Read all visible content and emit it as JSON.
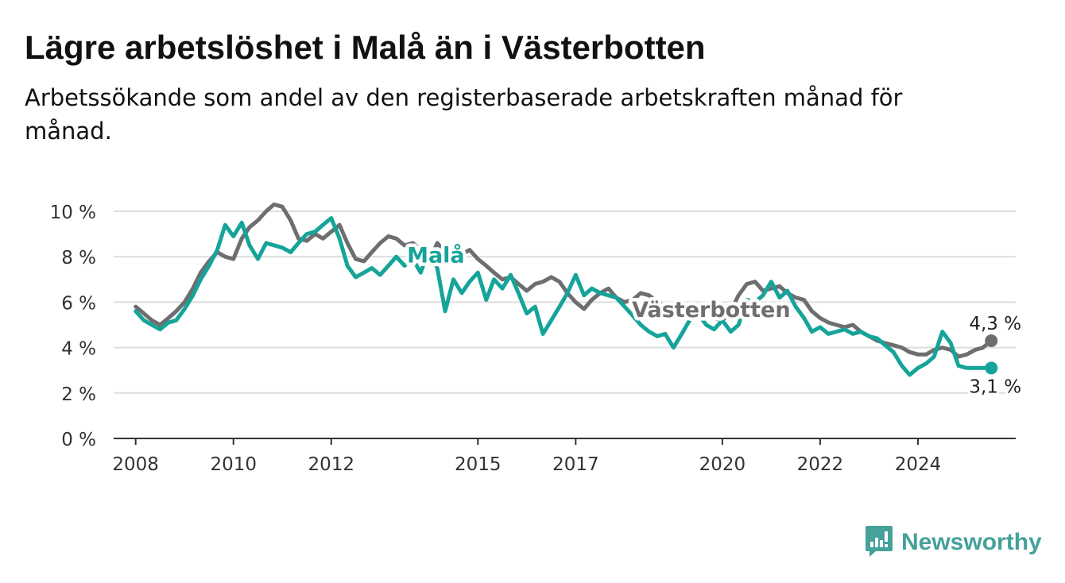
{
  "chart_data": {
    "type": "line",
    "title": "Lägre arbetslöshet i Malå än i Västerbotten",
    "subtitle": "Arbetssökande som andel av den registerbaserade arbetskraften månad för månad.",
    "ylim": [
      0,
      10
    ],
    "y_ticks": [
      0,
      2,
      4,
      6,
      8,
      10
    ],
    "y_tick_labels": [
      "0 %",
      "2 %",
      "4 %",
      "6 %",
      "8 %",
      "10 %"
    ],
    "x_ticks": [
      2008,
      2010,
      2012,
      2015,
      2017,
      2020,
      2022,
      2024
    ],
    "x_tick_labels": [
      "2008",
      "2010",
      "2012",
      "2015",
      "2017",
      "2020",
      "2022",
      "2024"
    ],
    "grid": true,
    "series": [
      {
        "name": "Västerbotten",
        "color": "#6e6d70",
        "end_label": "4,3 %",
        "points": [
          [
            2008.0,
            5.8
          ],
          [
            2008.17,
            5.5
          ],
          [
            2008.33,
            5.2
          ],
          [
            2008.5,
            5.0
          ],
          [
            2008.67,
            5.3
          ],
          [
            2008.83,
            5.6
          ],
          [
            2009.0,
            6.0
          ],
          [
            2009.17,
            6.6
          ],
          [
            2009.33,
            7.3
          ],
          [
            2009.5,
            7.8
          ],
          [
            2009.67,
            8.2
          ],
          [
            2009.83,
            8.0
          ],
          [
            2010.0,
            7.9
          ],
          [
            2010.17,
            8.8
          ],
          [
            2010.33,
            9.3
          ],
          [
            2010.5,
            9.6
          ],
          [
            2010.67,
            10.0
          ],
          [
            2010.83,
            10.3
          ],
          [
            2011.0,
            10.2
          ],
          [
            2011.17,
            9.6
          ],
          [
            2011.33,
            8.8
          ],
          [
            2011.5,
            8.7
          ],
          [
            2011.67,
            9.0
          ],
          [
            2011.83,
            8.8
          ],
          [
            2012.0,
            9.1
          ],
          [
            2012.17,
            9.4
          ],
          [
            2012.33,
            8.6
          ],
          [
            2012.5,
            7.9
          ],
          [
            2012.67,
            7.8
          ],
          [
            2012.83,
            8.2
          ],
          [
            2013.0,
            8.6
          ],
          [
            2013.17,
            8.9
          ],
          [
            2013.33,
            8.8
          ],
          [
            2013.5,
            8.5
          ],
          [
            2013.67,
            8.6
          ],
          [
            2013.83,
            8.3
          ],
          [
            2014.0,
            7.8
          ],
          [
            2014.17,
            8.6
          ],
          [
            2014.33,
            8.2
          ],
          [
            2014.5,
            8.4
          ],
          [
            2014.67,
            8.1
          ],
          [
            2014.83,
            8.3
          ],
          [
            2015.0,
            7.9
          ],
          [
            2015.17,
            7.6
          ],
          [
            2015.33,
            7.3
          ],
          [
            2015.5,
            7.0
          ],
          [
            2015.67,
            7.1
          ],
          [
            2015.83,
            6.8
          ],
          [
            2016.0,
            6.5
          ],
          [
            2016.17,
            6.8
          ],
          [
            2016.33,
            6.9
          ],
          [
            2016.5,
            7.1
          ],
          [
            2016.67,
            6.9
          ],
          [
            2016.83,
            6.4
          ],
          [
            2017.0,
            6.0
          ],
          [
            2017.17,
            5.7
          ],
          [
            2017.33,
            6.1
          ],
          [
            2017.5,
            6.4
          ],
          [
            2017.67,
            6.6
          ],
          [
            2017.83,
            6.2
          ],
          [
            2018.0,
            6.0
          ],
          [
            2018.17,
            6.1
          ],
          [
            2018.33,
            6.4
          ],
          [
            2018.5,
            6.3
          ],
          [
            2018.67,
            6.0
          ],
          [
            2018.83,
            5.8
          ],
          [
            2019.0,
            5.6
          ],
          [
            2019.17,
            5.5
          ],
          [
            2019.33,
            5.6
          ],
          [
            2019.5,
            5.4
          ],
          [
            2019.67,
            5.5
          ],
          [
            2019.83,
            5.3
          ],
          [
            2020.0,
            5.2
          ],
          [
            2020.17,
            5.6
          ],
          [
            2020.33,
            6.3
          ],
          [
            2020.5,
            6.8
          ],
          [
            2020.67,
            6.9
          ],
          [
            2020.83,
            6.5
          ],
          [
            2021.0,
            6.6
          ],
          [
            2021.17,
            6.7
          ],
          [
            2021.33,
            6.4
          ],
          [
            2021.5,
            6.2
          ],
          [
            2021.67,
            6.1
          ],
          [
            2021.83,
            5.6
          ],
          [
            2022.0,
            5.3
          ],
          [
            2022.17,
            5.1
          ],
          [
            2022.33,
            5.0
          ],
          [
            2022.5,
            4.9
          ],
          [
            2022.67,
            5.0
          ],
          [
            2022.83,
            4.7
          ],
          [
            2023.0,
            4.5
          ],
          [
            2023.17,
            4.3
          ],
          [
            2023.33,
            4.2
          ],
          [
            2023.5,
            4.1
          ],
          [
            2023.67,
            4.0
          ],
          [
            2023.83,
            3.8
          ],
          [
            2024.0,
            3.7
          ],
          [
            2024.17,
            3.7
          ],
          [
            2024.33,
            3.9
          ],
          [
            2024.5,
            4.0
          ],
          [
            2024.67,
            3.9
          ],
          [
            2024.83,
            3.6
          ],
          [
            2025.0,
            3.7
          ],
          [
            2025.17,
            3.9
          ],
          [
            2025.33,
            4.0
          ],
          [
            2025.5,
            4.3
          ]
        ]
      },
      {
        "name": "Malå",
        "color": "#15a499",
        "end_label": "3,1 %",
        "points": [
          [
            2008.0,
            5.6
          ],
          [
            2008.17,
            5.2
          ],
          [
            2008.33,
            5.0
          ],
          [
            2008.5,
            4.8
          ],
          [
            2008.67,
            5.1
          ],
          [
            2008.83,
            5.2
          ],
          [
            2009.0,
            5.7
          ],
          [
            2009.17,
            6.3
          ],
          [
            2009.33,
            7.0
          ],
          [
            2009.5,
            7.6
          ],
          [
            2009.67,
            8.3
          ],
          [
            2009.83,
            9.4
          ],
          [
            2010.0,
            8.9
          ],
          [
            2010.17,
            9.5
          ],
          [
            2010.33,
            8.5
          ],
          [
            2010.5,
            7.9
          ],
          [
            2010.67,
            8.6
          ],
          [
            2010.83,
            8.5
          ],
          [
            2011.0,
            8.4
          ],
          [
            2011.17,
            8.2
          ],
          [
            2011.33,
            8.6
          ],
          [
            2011.5,
            9.0
          ],
          [
            2011.67,
            9.1
          ],
          [
            2011.83,
            9.4
          ],
          [
            2012.0,
            9.7
          ],
          [
            2012.17,
            8.8
          ],
          [
            2012.33,
            7.6
          ],
          [
            2012.5,
            7.1
          ],
          [
            2012.67,
            7.3
          ],
          [
            2012.83,
            7.5
          ],
          [
            2013.0,
            7.2
          ],
          [
            2013.17,
            7.6
          ],
          [
            2013.33,
            8.0
          ],
          [
            2013.5,
            7.6
          ],
          [
            2013.67,
            7.9
          ],
          [
            2013.83,
            7.3
          ],
          [
            2014.0,
            8.3
          ],
          [
            2014.17,
            7.5
          ],
          [
            2014.33,
            5.6
          ],
          [
            2014.5,
            7.0
          ],
          [
            2014.67,
            6.4
          ],
          [
            2014.83,
            6.9
          ],
          [
            2015.0,
            7.3
          ],
          [
            2015.17,
            6.1
          ],
          [
            2015.33,
            7.0
          ],
          [
            2015.5,
            6.6
          ],
          [
            2015.67,
            7.2
          ],
          [
            2015.83,
            6.4
          ],
          [
            2016.0,
            5.5
          ],
          [
            2016.17,
            5.8
          ],
          [
            2016.33,
            4.6
          ],
          [
            2016.5,
            5.2
          ],
          [
            2016.67,
            5.8
          ],
          [
            2016.83,
            6.4
          ],
          [
            2017.0,
            7.2
          ],
          [
            2017.17,
            6.3
          ],
          [
            2017.33,
            6.6
          ],
          [
            2017.5,
            6.4
          ],
          [
            2017.67,
            6.3
          ],
          [
            2017.83,
            6.2
          ],
          [
            2018.0,
            5.8
          ],
          [
            2018.17,
            5.4
          ],
          [
            2018.33,
            5.0
          ],
          [
            2018.5,
            4.7
          ],
          [
            2018.67,
            4.5
          ],
          [
            2018.83,
            4.6
          ],
          [
            2019.0,
            4.0
          ],
          [
            2019.17,
            4.6
          ],
          [
            2019.33,
            5.2
          ],
          [
            2019.5,
            5.5
          ],
          [
            2019.67,
            5.0
          ],
          [
            2019.83,
            4.8
          ],
          [
            2020.0,
            5.2
          ],
          [
            2020.17,
            4.7
          ],
          [
            2020.33,
            5.0
          ],
          [
            2020.5,
            6.1
          ],
          [
            2020.67,
            6.0
          ],
          [
            2020.83,
            6.3
          ],
          [
            2021.0,
            6.9
          ],
          [
            2021.17,
            6.2
          ],
          [
            2021.33,
            6.5
          ],
          [
            2021.5,
            5.8
          ],
          [
            2021.67,
            5.3
          ],
          [
            2021.83,
            4.7
          ],
          [
            2022.0,
            4.9
          ],
          [
            2022.17,
            4.6
          ],
          [
            2022.33,
            4.7
          ],
          [
            2022.5,
            4.8
          ],
          [
            2022.67,
            4.6
          ],
          [
            2022.83,
            4.7
          ],
          [
            2023.0,
            4.5
          ],
          [
            2023.17,
            4.4
          ],
          [
            2023.33,
            4.1
          ],
          [
            2023.5,
            3.8
          ],
          [
            2023.67,
            3.2
          ],
          [
            2023.83,
            2.8
          ],
          [
            2024.0,
            3.1
          ],
          [
            2024.17,
            3.3
          ],
          [
            2024.33,
            3.6
          ],
          [
            2024.5,
            4.7
          ],
          [
            2024.67,
            4.2
          ],
          [
            2024.83,
            3.2
          ],
          [
            2025.0,
            3.1
          ],
          [
            2025.17,
            3.1
          ],
          [
            2025.33,
            3.1
          ],
          [
            2025.5,
            3.1
          ]
        ]
      }
    ]
  },
  "brand": {
    "name": "Newsworthy",
    "icon": "newsworthy-logo-icon",
    "color": "#45a19a"
  }
}
